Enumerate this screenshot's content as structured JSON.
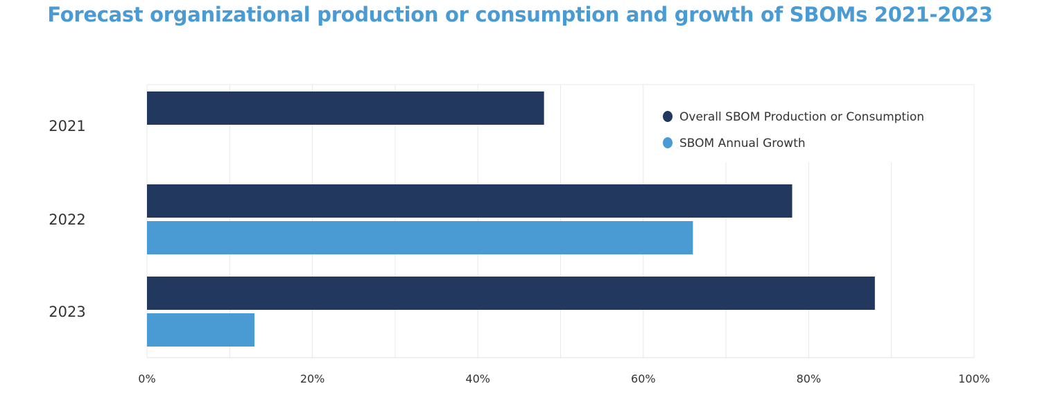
{
  "chart_data": {
    "type": "bar",
    "orientation": "horizontal",
    "title": "Forecast organizational production or consumption and growth of SBOMs 2021-2023",
    "categories": [
      "2021",
      "2022",
      "2023"
    ],
    "series": [
      {
        "name": "Overall SBOM Production or Consumption",
        "color": "#22385f",
        "values": [
          48,
          78,
          88
        ]
      },
      {
        "name": "SBOM Annual Growth",
        "color": "#4a9ad4",
        "values": [
          null,
          66,
          13
        ]
      }
    ],
    "xlim": [
      0,
      100
    ],
    "xticks": [
      "0%",
      "20%",
      "40%",
      "60%",
      "80%",
      "100%"
    ],
    "xlabel": "",
    "ylabel": "",
    "grid": true,
    "legend": "top-right",
    "title_color": "#4a9ad4"
  }
}
